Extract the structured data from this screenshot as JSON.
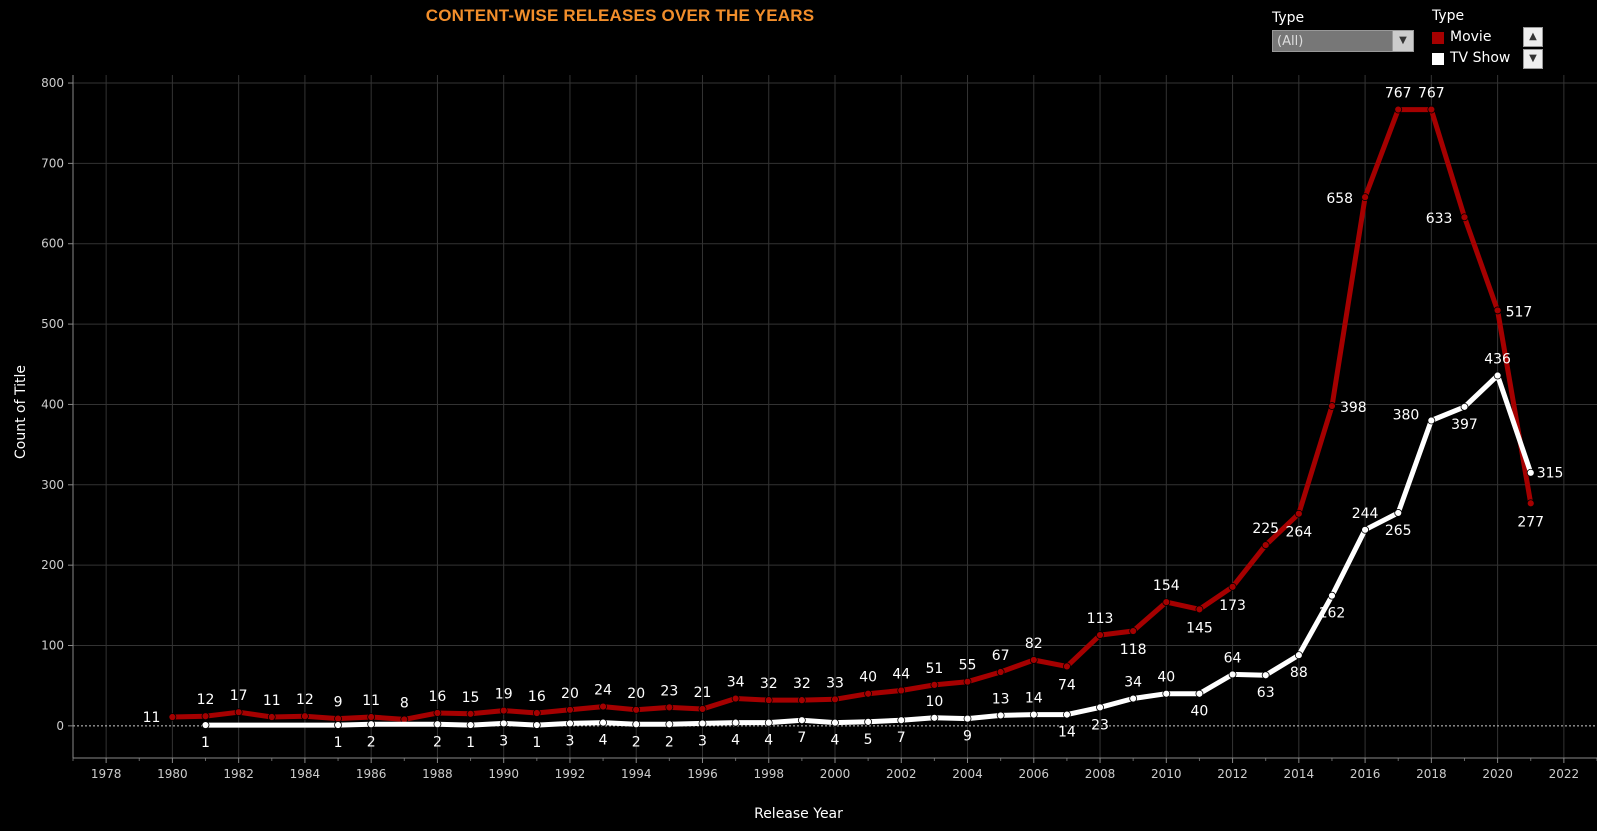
{
  "chart_data": {
    "type": "line",
    "title": "CONTENT-WISE RELEASES OVER THE YEARS",
    "xlabel": "Release Year",
    "ylabel": "Count of Title",
    "xlim": [
      1977,
      2023
    ],
    "ylim": [
      -40,
      810
    ],
    "x_ticks": [
      1978,
      1980,
      1982,
      1984,
      1986,
      1988,
      1990,
      1992,
      1994,
      1996,
      1998,
      2000,
      2002,
      2004,
      2006,
      2008,
      2010,
      2012,
      2014,
      2016,
      2018,
      2020,
      2022
    ],
    "y_ticks": [
      0,
      100,
      200,
      300,
      400,
      500,
      600,
      700,
      800
    ],
    "grid": true,
    "legend_position": "top-right",
    "series": [
      {
        "name": "Movie",
        "color": "#a50000",
        "x": [
          1980,
          1981,
          1982,
          1983,
          1984,
          1985,
          1986,
          1987,
          1988,
          1989,
          1990,
          1991,
          1992,
          1993,
          1994,
          1995,
          1996,
          1997,
          1998,
          1999,
          2000,
          2001,
          2002,
          2003,
          2004,
          2005,
          2006,
          2007,
          2008,
          2009,
          2010,
          2011,
          2012,
          2013,
          2014,
          2015,
          2016,
          2017,
          2018,
          2019,
          2020,
          2021
        ],
        "values": [
          11,
          12,
          17,
          11,
          12,
          9,
          11,
          8,
          16,
          15,
          19,
          16,
          20,
          24,
          20,
          23,
          21,
          34,
          32,
          32,
          33,
          40,
          44,
          51,
          55,
          67,
          82,
          74,
          113,
          118,
          154,
          145,
          173,
          225,
          264,
          398,
          658,
          767,
          767,
          633,
          517,
          277
        ]
      },
      {
        "name": "TV Show",
        "color": "#ffffff",
        "x": [
          1981,
          1985,
          1986,
          1988,
          1989,
          1990,
          1991,
          1992,
          1993,
          1994,
          1995,
          1996,
          1997,
          1998,
          1999,
          2000,
          2001,
          2002,
          2003,
          2004,
          2005,
          2006,
          2007,
          2008,
          2009,
          2010,
          2011,
          2012,
          2013,
          2014,
          2015,
          2016,
          2017,
          2018,
          2019,
          2020,
          2021
        ],
        "values": [
          1,
          1,
          2,
          2,
          1,
          3,
          1,
          3,
          4,
          2,
          2,
          3,
          4,
          4,
          7,
          4,
          5,
          7,
          10,
          9,
          13,
          14,
          14,
          23,
          34,
          40,
          40,
          64,
          63,
          88,
          162,
          244,
          265,
          380,
          397,
          436,
          315
        ]
      }
    ]
  },
  "filter": {
    "title": "Type",
    "value": "(All)"
  },
  "legend": {
    "title": "Type",
    "items": [
      {
        "label": "Movie",
        "color": "#a50000"
      },
      {
        "label": "TV Show",
        "color": "#ffffff"
      }
    ]
  }
}
